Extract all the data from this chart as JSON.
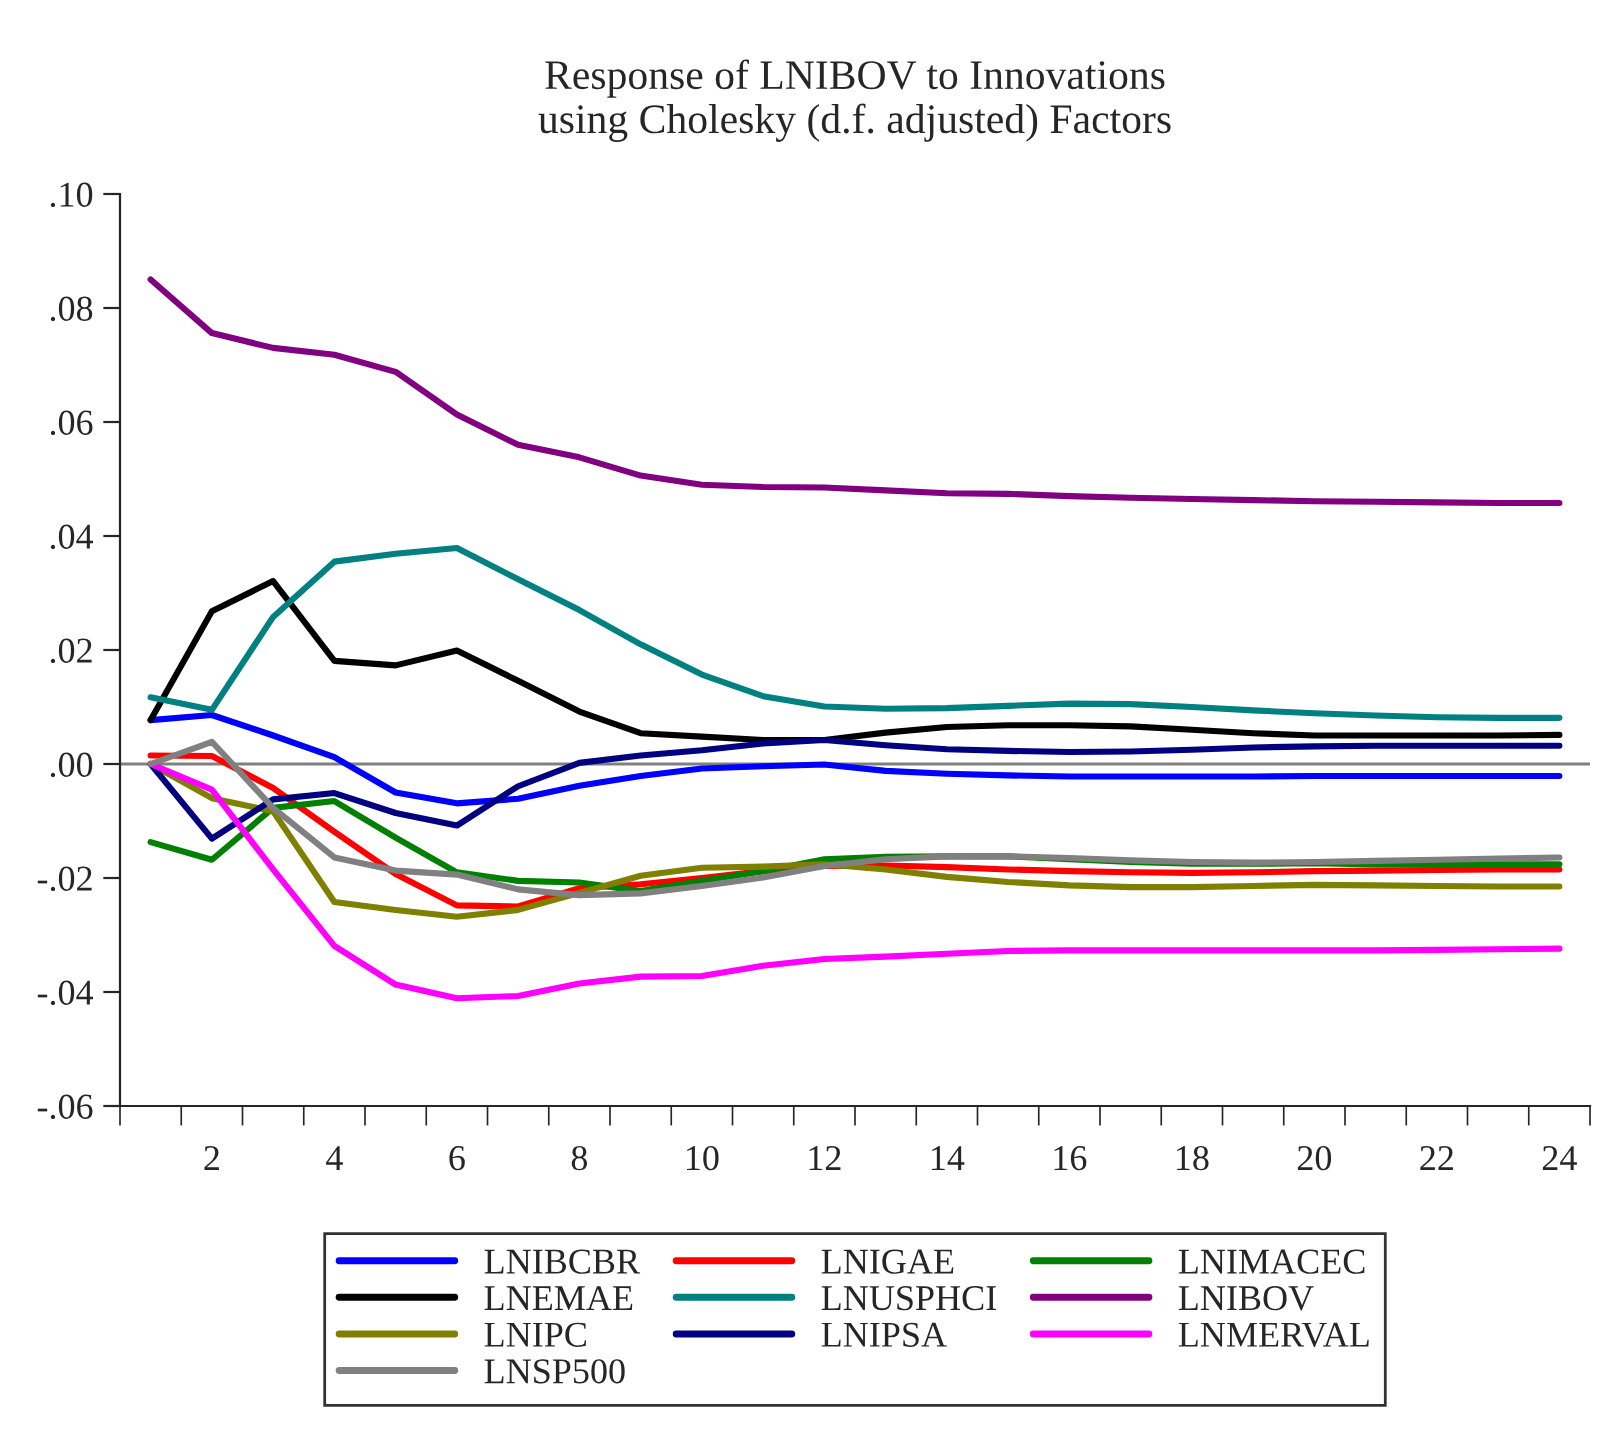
{
  "chart_data": {
    "type": "line",
    "title": "Response of LNIBOV to Innovations\nusing Cholesky (d.f. adjusted) Factors",
    "x": [
      1,
      2,
      3,
      4,
      5,
      6,
      7,
      8,
      9,
      10,
      11,
      12,
      13,
      14,
      15,
      16,
      17,
      18,
      19,
      20,
      21,
      22,
      23,
      24
    ],
    "series": [
      {
        "name": "LNIBCBR",
        "color": "#0000ff",
        "values": [
          0.0077,
          0.0086,
          0.005,
          0.0012,
          -0.005,
          -0.0069,
          -0.0061,
          -0.0038,
          -0.0021,
          -0.0008,
          -0.0004,
          -0.0001,
          -0.0012,
          -0.0017,
          -0.002,
          -0.0022,
          -0.0022,
          -0.0022,
          -0.0022,
          -0.0021,
          -0.0021,
          -0.0021,
          -0.0021,
          -0.0021
        ]
      },
      {
        "name": "LNIGAE",
        "color": "#ff0000",
        "values": [
          0.0015,
          0.0014,
          -0.0042,
          -0.0119,
          -0.0193,
          -0.0248,
          -0.025,
          -0.0218,
          -0.0211,
          -0.02,
          -0.0188,
          -0.0179,
          -0.0178,
          -0.0181,
          -0.0185,
          -0.0188,
          -0.019,
          -0.0191,
          -0.019,
          -0.0188,
          -0.0187,
          -0.0186,
          -0.0185,
          -0.0185
        ]
      },
      {
        "name": "LNIMACEC",
        "color": "#008000",
        "values": [
          -0.0137,
          -0.0168,
          -0.0077,
          -0.0065,
          -0.0129,
          -0.019,
          -0.0205,
          -0.0208,
          -0.0223,
          -0.0205,
          -0.0188,
          -0.0167,
          -0.0163,
          -0.0162,
          -0.0162,
          -0.0167,
          -0.0172,
          -0.0175,
          -0.0175,
          -0.0174,
          -0.0176,
          -0.0176,
          -0.0176,
          -0.0176
        ]
      },
      {
        "name": "LNEMAE",
        "color": "#000000",
        "values": [
          0.0077,
          0.0268,
          0.0321,
          0.0181,
          0.0173,
          0.0199,
          0.0146,
          0.0092,
          0.0054,
          0.0048,
          0.0042,
          0.0042,
          0.0055,
          0.0065,
          0.0068,
          0.0068,
          0.0066,
          0.006,
          0.0054,
          0.005,
          0.005,
          0.005,
          0.005,
          0.0051
        ]
      },
      {
        "name": "LNUSPHCI",
        "color": "#008080",
        "values": [
          0.0117,
          0.0095,
          0.0258,
          0.0355,
          0.0369,
          0.0379,
          0.0324,
          0.027,
          0.021,
          0.0157,
          0.0119,
          0.0101,
          0.0097,
          0.0098,
          0.0102,
          0.0106,
          0.0105,
          0.01,
          0.0094,
          0.0089,
          0.0085,
          0.0082,
          0.0081,
          0.0081
        ]
      },
      {
        "name": "LNIBOV",
        "color": "#800080",
        "values": [
          0.085,
          0.0756,
          0.073,
          0.0718,
          0.0688,
          0.0613,
          0.056,
          0.0538,
          0.0506,
          0.049,
          0.0486,
          0.0485,
          0.048,
          0.0475,
          0.0474,
          0.047,
          0.0467,
          0.0465,
          0.0463,
          0.0461,
          0.046,
          0.0459,
          0.0458,
          0.0458
        ]
      },
      {
        "name": "LNIPC",
        "color": "#808000",
        "values": [
          0.0,
          -0.006,
          -0.0083,
          -0.0242,
          -0.0256,
          -0.0268,
          -0.0256,
          -0.0226,
          -0.0196,
          -0.0182,
          -0.018,
          -0.0176,
          -0.0185,
          -0.0198,
          -0.0207,
          -0.0213,
          -0.0216,
          -0.0216,
          -0.0214,
          -0.0212,
          -0.0213,
          -0.0214,
          -0.0215,
          -0.0215
        ]
      },
      {
        "name": "LNIPSA",
        "color": "#000080",
        "values": [
          0.0,
          -0.0131,
          -0.0062,
          -0.0051,
          -0.0086,
          -0.0108,
          -0.0039,
          0.0002,
          0.0015,
          0.0024,
          0.0036,
          0.0042,
          0.0033,
          0.0026,
          0.0023,
          0.0021,
          0.0022,
          0.0025,
          0.0029,
          0.0031,
          0.0032,
          0.0032,
          0.0032,
          0.0032
        ]
      },
      {
        "name": "LNMERVAL",
        "color": "#ff00ff",
        "values": [
          0.0,
          -0.0045,
          -0.0185,
          -0.0319,
          -0.0387,
          -0.0411,
          -0.0407,
          -0.0385,
          -0.0373,
          -0.0372,
          -0.0354,
          -0.0342,
          -0.0338,
          -0.0333,
          -0.0328,
          -0.0327,
          -0.0327,
          -0.0327,
          -0.0327,
          -0.0327,
          -0.0327,
          -0.0326,
          -0.0325,
          -0.0324
        ]
      },
      {
        "name": "LNSP500",
        "color": "#808080",
        "values": [
          0.0,
          0.0039,
          -0.0077,
          -0.0164,
          -0.0187,
          -0.0194,
          -0.022,
          -0.023,
          -0.0227,
          -0.0214,
          -0.0199,
          -0.0179,
          -0.0167,
          -0.0162,
          -0.0162,
          -0.0165,
          -0.0169,
          -0.0172,
          -0.0173,
          -0.0172,
          -0.017,
          -0.0168,
          -0.0166,
          -0.0164
        ]
      }
    ],
    "xlim": [
      0.5,
      24.5
    ],
    "xticks": [
      {
        "value": 0.5,
        "label": null
      },
      {
        "value": 1.5,
        "label": null
      },
      2,
      {
        "value": 2.5,
        "label": null
      },
      {
        "value": 3.5,
        "label": null
      },
      4,
      {
        "value": 4.5,
        "label": null
      },
      {
        "value": 5.5,
        "label": null
      },
      6,
      {
        "value": 6.5,
        "label": null
      },
      {
        "value": 7.5,
        "label": null
      },
      8,
      {
        "value": 8.5,
        "label": null
      },
      {
        "value": 9.5,
        "label": null
      },
      10,
      {
        "value": 10.5,
        "label": null
      },
      {
        "value": 11.5,
        "label": null
      },
      12,
      {
        "value": 12.5,
        "label": null
      },
      {
        "value": 13.5,
        "label": null
      },
      14,
      {
        "value": 14.5,
        "label": null
      },
      {
        "value": 15.5,
        "label": null
      },
      16,
      {
        "value": 16.5,
        "label": null
      },
      {
        "value": 17.5,
        "label": null
      },
      18,
      {
        "value": 18.5,
        "label": null
      },
      {
        "value": 19.5,
        "label": null
      },
      20,
      {
        "value": 20.5,
        "label": null
      },
      {
        "value": 21.5,
        "label": null
      },
      22,
      {
        "value": 22.5,
        "label": null
      },
      {
        "value": 23.5,
        "label": null
      },
      24,
      {
        "value": 24.5,
        "label": null
      }
    ],
    "ylim": [
      -0.06,
      0.1
    ],
    "yticks": [
      {
        "value": -0.06,
        "label": "-.06"
      },
      {
        "value": -0.04,
        "label": "-.04"
      },
      {
        "value": -0.02,
        "label": "-.02"
      },
      {
        "value": 0.0,
        "label": ".00"
      },
      {
        "value": 0.02,
        "label": ".02"
      },
      {
        "value": 0.04,
        "label": ".04"
      },
      {
        "value": 0.06,
        "label": ".06"
      },
      {
        "value": 0.08,
        "label": ".08"
      },
      {
        "value": 0.1,
        "label": ".10"
      }
    ],
    "ref_lines": [
      {
        "axis": "y",
        "value": 0,
        "label": null,
        "color": "#808080"
      }
    ],
    "grid": false,
    "legend": "bottom",
    "marker": "none",
    "line_style": "solid"
  }
}
